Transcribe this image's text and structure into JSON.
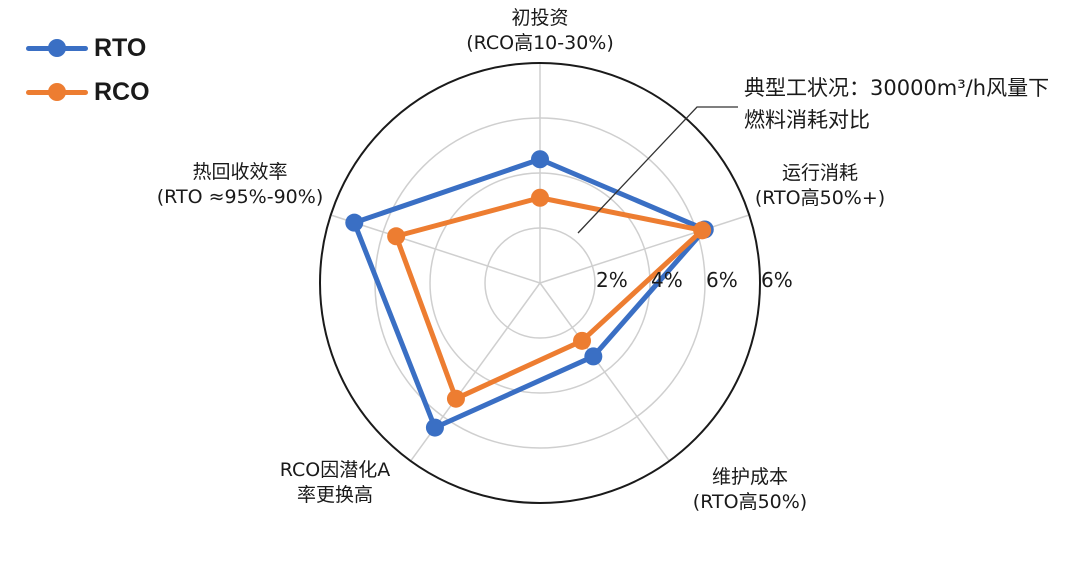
{
  "chart_data": {
    "type": "radar",
    "title": "",
    "categories": [
      "初投资 (RCO高10-30%)",
      "运行消耗 (RTO高50%+)",
      "维护成本 (RTO高50%)",
      "RCO因潜化A率更换高",
      "热回收效率 (RTO ≈95%-90%)"
    ],
    "series": [
      {
        "name": "RTO",
        "color": "#3a6fc4",
        "values": [
          4.5,
          6.3,
          3.3,
          6.5,
          7.1
        ]
      },
      {
        "name": "RCO",
        "color": "#ed7d31",
        "values": [
          3.1,
          6.2,
          2.6,
          5.2,
          5.5
        ]
      }
    ],
    "radial_ticks": [
      "2%",
      "4%",
      "6%",
      "6%"
    ],
    "rlim": [
      0,
      8
    ],
    "grid": true,
    "legend_position": "top-left",
    "annotation": "典型工状况：30000m³/h风量下燃料消耗对比"
  },
  "legend": {
    "items": [
      {
        "label": "RTO",
        "color": "#3a6fc4"
      },
      {
        "label": "RCO",
        "color": "#ed7d31"
      }
    ]
  },
  "axes": {
    "top": {
      "line1": "初投资",
      "line2": "(RCO高10-30%)"
    },
    "right": {
      "line1": "运行消耗",
      "line2": "(RTO高50%+)"
    },
    "bottom_right": {
      "line1": "维护成本",
      "line2": "(RTO高50%)"
    },
    "bottom_left": {
      "line1": "RCO因潜化A",
      "line2": "率更换高"
    },
    "left": {
      "line1": "热回收效率",
      "line2": "(RTO ≈95%-90%)"
    }
  },
  "ticks": [
    "2%",
    "4%",
    "6%",
    "6%"
  ],
  "annotation": {
    "line1": "典型工状况：30000m³/h风量下",
    "line2": "燃料消耗对比"
  }
}
